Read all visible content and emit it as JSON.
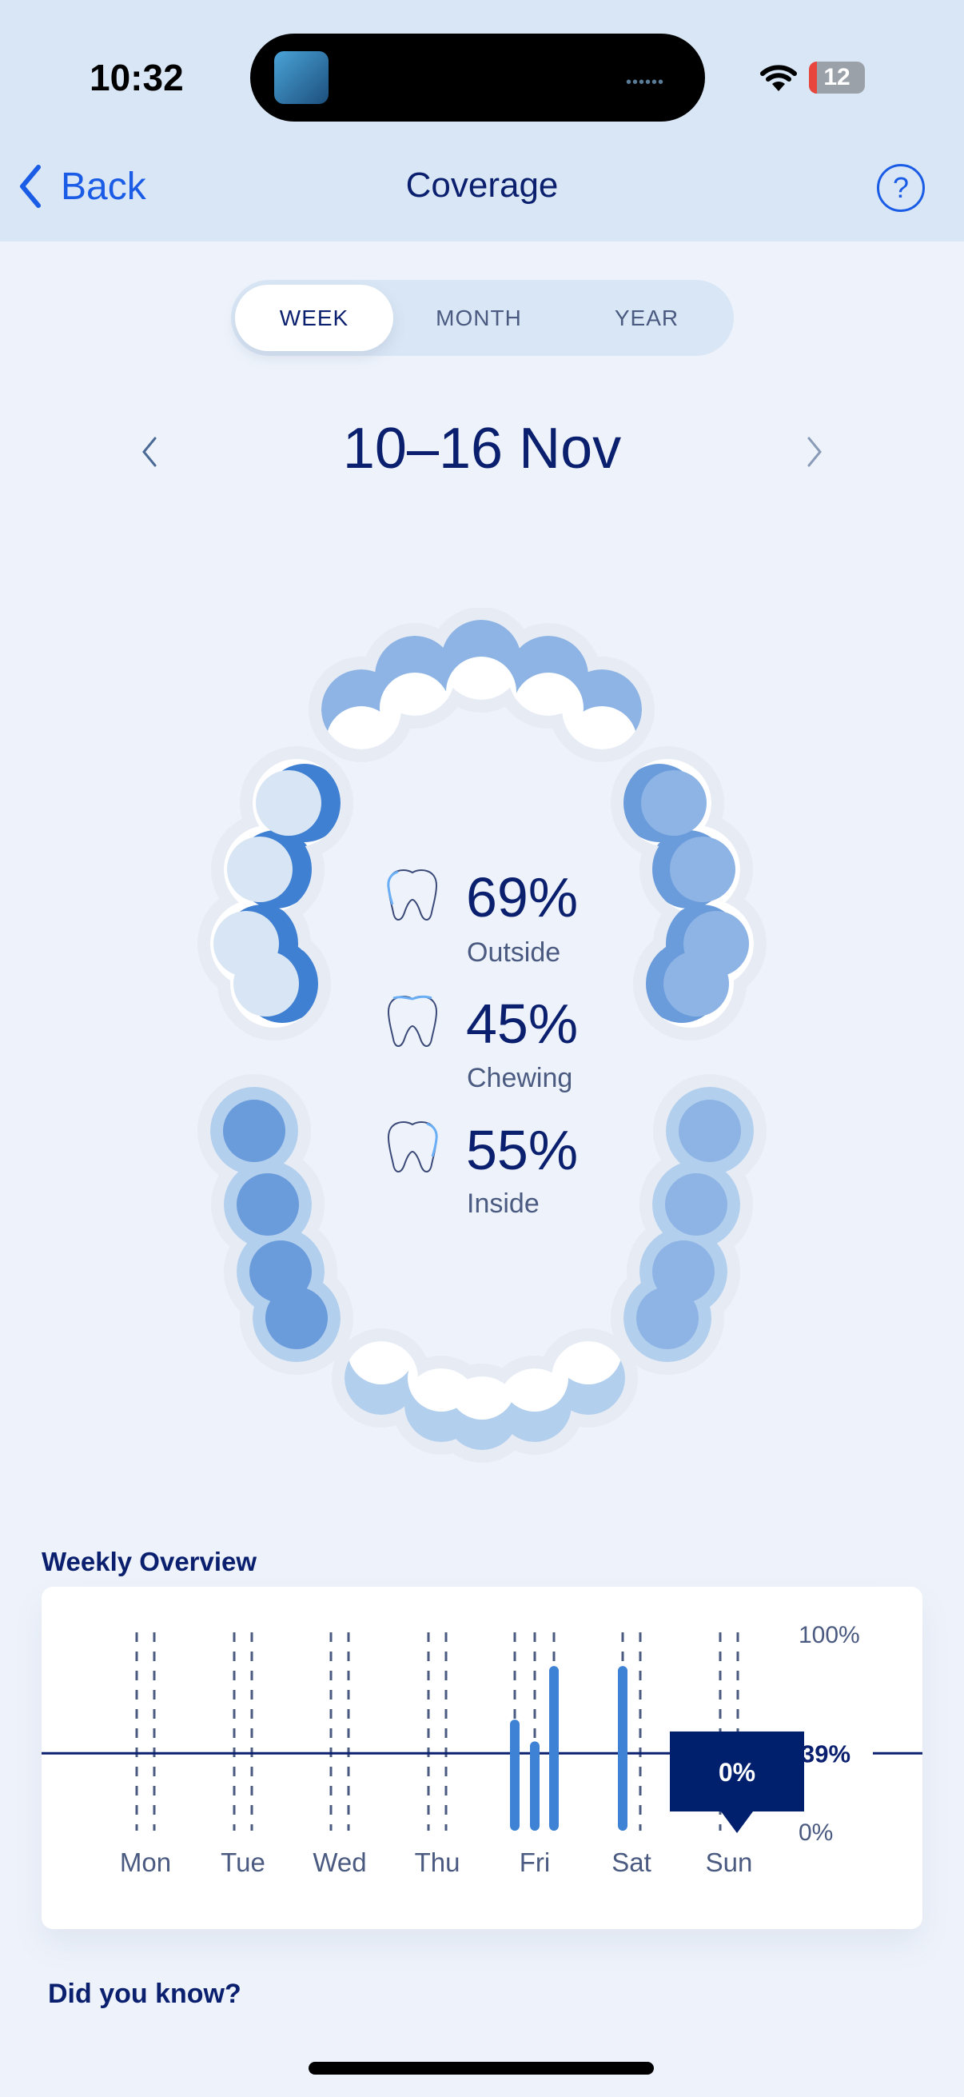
{
  "status_bar": {
    "time": "10:32",
    "battery": "12"
  },
  "nav": {
    "back_label": "Back",
    "title": "Coverage",
    "help_icon": "question-circle-icon"
  },
  "period_tabs": [
    {
      "label": "WEEK",
      "active": true
    },
    {
      "label": "MONTH",
      "active": false
    },
    {
      "label": "YEAR",
      "active": false
    }
  ],
  "date_range": "10–16 Nov",
  "coverage": [
    {
      "value": "69%",
      "label": "Outside"
    },
    {
      "value": "45%",
      "label": "Chewing"
    },
    {
      "value": "55%",
      "label": "Inside"
    }
  ],
  "colors": {
    "navy": "#0a1f6e",
    "accent": "#1a5ce6",
    "bar": "#3d82d4",
    "muted": "#4a5a80"
  },
  "weekly_overview": {
    "title": "Weekly Overview",
    "chart_data": {
      "type": "bar",
      "categories": [
        "Mon",
        "Tue",
        "Wed",
        "Thu",
        "Fri",
        "Sat",
        "Sun"
      ],
      "sessions": [
        [],
        [],
        [],
        [],
        [
          56,
          45,
          83
        ],
        [
          83
        ],
        []
      ],
      "average": 39,
      "average_label": "39%",
      "ylim": [
        0,
        100
      ],
      "ytick_labels": [
        "100%",
        "0%"
      ],
      "tooltip": {
        "day": "Sun",
        "value": "0%"
      }
    }
  },
  "did_you_know": "Did you know?"
}
